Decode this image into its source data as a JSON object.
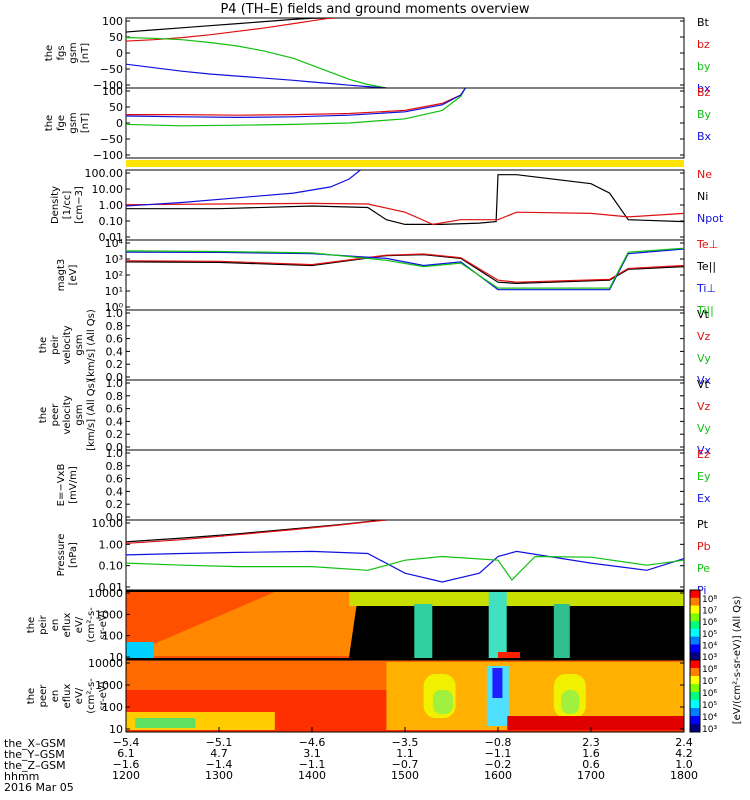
{
  "title": "P4 (TH–E) fields and ground moments overview",
  "colors": {
    "black": "#000000",
    "red": "#e01010",
    "green": "#10c010",
    "blue": "#1010e0",
    "yellow": "#ffe400"
  },
  "chart_data": [
    {
      "type": "line",
      "panel": "fgs-gsm",
      "ylabel_lines": [
        "the",
        "fgs",
        "gsm",
        "[nT]"
      ],
      "ytick_labels": [
        "100",
        "50",
        "0",
        "−50",
        "−100"
      ],
      "ylim": [
        -100,
        100
      ],
      "legend": [
        {
          "name": "Bt",
          "color": "#000000"
        },
        {
          "name": "bz",
          "color": "#e01010"
        },
        {
          "name": "by",
          "color": "#10c010"
        },
        {
          "name": "bx",
          "color": "#1010e0"
        }
      ],
      "series": [
        {
          "name": "Bt",
          "color": "#000000",
          "x": [
            1200,
            1230,
            1260,
            1290,
            1320,
            1350,
            1380,
            1400,
            1415,
            1425
          ],
          "y": [
            60,
            66,
            72,
            78,
            84,
            90,
            96,
            99,
            100,
            100
          ]
        },
        {
          "name": "bz",
          "color": "#e01010",
          "x": [
            1200,
            1230,
            1260,
            1290,
            1320,
            1350,
            1380,
            1400,
            1415,
            1425
          ],
          "y": [
            34,
            38,
            44,
            52,
            62,
            72,
            84,
            92,
            98,
            100
          ]
        },
        {
          "name": "by",
          "color": "#10c010",
          "x": [
            1200,
            1230,
            1260,
            1290,
            1320,
            1350,
            1380,
            1400,
            1420,
            1440,
            1460,
            1480
          ],
          "y": [
            44,
            42,
            38,
            30,
            20,
            5,
            -15,
            -35,
            -55,
            -75,
            -90,
            -100
          ]
        },
        {
          "name": "bx",
          "color": "#1010e0",
          "x": [
            1200,
            1230,
            1260,
            1290,
            1320,
            1350,
            1380,
            1400,
            1420,
            1440,
            1460,
            1480
          ],
          "y": [
            -32,
            -42,
            -52,
            -60,
            -66,
            -72,
            -78,
            -83,
            -87,
            -92,
            -96,
            -100
          ]
        }
      ]
    },
    {
      "type": "line",
      "panel": "fge-gsm",
      "ylabel_lines": [
        "the",
        "fge",
        "gsm",
        "[nT]"
      ],
      "ytick_labels": [
        "100",
        "50",
        "0",
        "−50",
        "−100"
      ],
      "ylim": [
        -125,
        125
      ],
      "legend": [
        {
          "name": "Bz",
          "color": "#e01010"
        },
        {
          "name": "By",
          "color": "#10c010"
        },
        {
          "name": "Bx",
          "color": "#1010e0"
        }
      ],
      "series": [
        {
          "name": "Bz",
          "color": "#e01010",
          "x": [
            1200,
            1260,
            1320,
            1380,
            1440,
            1500,
            1540,
            1560,
            1565
          ],
          "y": [
            30,
            30,
            28,
            30,
            34,
            45,
            70,
            100,
            125
          ]
        },
        {
          "name": "By",
          "color": "#10c010",
          "x": [
            1200,
            1260,
            1320,
            1380,
            1440,
            1500,
            1540,
            1560,
            1565
          ],
          "y": [
            -5,
            -10,
            -8,
            -5,
            0,
            15,
            45,
            95,
            125
          ]
        },
        {
          "name": "Bx",
          "color": "#1010e0",
          "x": [
            1200,
            1260,
            1320,
            1380,
            1440,
            1500,
            1540,
            1560,
            1565
          ],
          "y": [
            25,
            22,
            20,
            22,
            28,
            40,
            65,
            100,
            125
          ]
        }
      ]
    },
    {
      "type": "line",
      "panel": "density",
      "ylabel_lines": [
        "Density",
        "[1/cc]",
        "[cm−3]"
      ],
      "ytick_labels": [
        "100.00",
        "10.00",
        "1.00",
        "0.10",
        "0.01"
      ],
      "ylim": [
        0.01,
        300
      ],
      "legend": [
        {
          "name": "Ne",
          "color": "#e01010"
        },
        {
          "name": "Ni",
          "color": "#000000"
        },
        {
          "name": "Npot",
          "color": "#1010e0"
        }
      ],
      "series": [
        {
          "name": "Ni",
          "color": "#000000",
          "x": [
            1200,
            1300,
            1400,
            1460,
            1480,
            1500,
            1540,
            1580,
            1598,
            1600,
            1620,
            1700,
            1720,
            1740,
            1800
          ],
          "y": [
            1.0,
            1.0,
            1.5,
            1.2,
            0.2,
            0.1,
            0.1,
            0.12,
            0.15,
            150,
            150,
            40,
            10,
            0.2,
            0.15
          ]
        },
        {
          "name": "Ne",
          "color": "#e01010",
          "x": [
            1200,
            1300,
            1400,
            1460,
            1500,
            1530,
            1560,
            1600,
            1620,
            1700,
            1740,
            1800
          ],
          "y": [
            1.8,
            2,
            2.2,
            2,
            0.6,
            0.1,
            0.2,
            0.2,
            0.6,
            0.5,
            0.3,
            0.5
          ]
        },
        {
          "name": "Npot",
          "color": "#1010e0",
          "x": [
            1200,
            1260,
            1320,
            1380,
            1420,
            1440,
            1452
          ],
          "y": [
            1.5,
            2.5,
            5,
            10,
            25,
            80,
            300
          ]
        }
      ]
    },
    {
      "type": "line",
      "panel": "temperature",
      "ylabel_lines": [
        "magt3",
        "[eV]"
      ],
      "ytick_labels": [
        "10⁴",
        "10³",
        "10²",
        "10¹",
        "10⁰"
      ],
      "ylim": [
        1,
        30000
      ],
      "legend": [
        {
          "name": "Te⊥",
          "color": "#e01010"
        },
        {
          "name": "Te||",
          "color": "#000000"
        },
        {
          "name": "Ti⊥",
          "color": "#1010e0"
        },
        {
          "name": "Ti||",
          "color": "#10c010"
        }
      ],
      "series": [
        {
          "name": "Te||",
          "color": "#000000",
          "x": [
            1200,
            1300,
            1400,
            1480,
            1520,
            1560,
            1600,
            1620,
            1720,
            1740,
            1800
          ],
          "y": [
            1200,
            1100,
            700,
            3000,
            3500,
            2000,
            60,
            50,
            80,
            400,
            600
          ]
        },
        {
          "name": "Te⊥",
          "color": "#e01010",
          "x": [
            1200,
            1300,
            1400,
            1480,
            1520,
            1560,
            1600,
            1620,
            1720,
            1740,
            1800
          ],
          "y": [
            1400,
            1300,
            800,
            3200,
            3800,
            2200,
            80,
            60,
            90,
            450,
            700
          ]
        },
        {
          "name": "Ti⊥",
          "color": "#1010e0",
          "x": [
            1200,
            1300,
            1400,
            1480,
            1520,
            1560,
            1600,
            1620,
            1720,
            1740,
            1800
          ],
          "y": [
            5000,
            4800,
            4000,
            2000,
            700,
            1200,
            20,
            20,
            20,
            4000,
            8000
          ]
        },
        {
          "name": "Ti||",
          "color": "#10c010",
          "x": [
            1200,
            1300,
            1400,
            1480,
            1520,
            1560,
            1600,
            1620,
            1720,
            1740,
            1800
          ],
          "y": [
            6000,
            5500,
            4500,
            1500,
            600,
            1000,
            25,
            25,
            25,
            5000,
            9000
          ]
        }
      ]
    },
    {
      "type": "line",
      "panel": "peir-velocity",
      "ylabel_lines": [
        "the",
        "peir",
        "velocity",
        "gsm",
        "[km/s] (All Qs)"
      ],
      "ytick_labels": [
        "1.0",
        "0.8",
        "0.6",
        "0.4",
        "0.2",
        "0.0"
      ],
      "ylim": [
        0,
        1
      ],
      "legend": [
        {
          "name": "Vt",
          "color": "#000000"
        },
        {
          "name": "Vz",
          "color": "#e01010"
        },
        {
          "name": "Vy",
          "color": "#10c010"
        },
        {
          "name": "Vx",
          "color": "#1010e0"
        }
      ],
      "series": []
    },
    {
      "type": "line",
      "panel": "peer-velocity",
      "ylabel_lines": [
        "the",
        "peer",
        "velocity",
        "gsm",
        "[km/s] (All Qs)"
      ],
      "ytick_labels": [
        "1.0",
        "0.8",
        "0.6",
        "0.4",
        "0.2",
        "0.0"
      ],
      "ylim": [
        0,
        1
      ],
      "legend": [
        {
          "name": "Vt",
          "color": "#000000"
        },
        {
          "name": "Vz",
          "color": "#e01010"
        },
        {
          "name": "Vy",
          "color": "#10c010"
        },
        {
          "name": "Vx",
          "color": "#1010e0"
        }
      ],
      "series": []
    },
    {
      "type": "line",
      "panel": "E-field",
      "ylabel_lines": [
        "E=−VxB",
        "[mV/m]"
      ],
      "ytick_labels": [
        "1.0",
        "0.8",
        "0.6",
        "0.4",
        "0.2",
        "0.0"
      ],
      "ylim": [
        0,
        1
      ],
      "legend": [
        {
          "name": "Ez",
          "color": "#e01010"
        },
        {
          "name": "Ey",
          "color": "#10c010"
        },
        {
          "name": "Ex",
          "color": "#1010e0"
        }
      ],
      "series": []
    },
    {
      "type": "line",
      "panel": "pressure",
      "ylabel_lines": [
        "Pressure",
        "[nPa]"
      ],
      "ytick_labels": [
        "10.00",
        "1.00",
        "0.10",
        "0.01"
      ],
      "ylim": [
        0.002,
        30
      ],
      "legend": [
        {
          "name": "Pt",
          "color": "#000000"
        },
        {
          "name": "Pb",
          "color": "#e01010"
        },
        {
          "name": "Pe",
          "color": "#10c010"
        },
        {
          "name": "Pi",
          "color": "#1010e0"
        }
      ],
      "series": [
        {
          "name": "Pt",
          "color": "#000000",
          "x": [
            1200,
            1260,
            1320,
            1380,
            1430,
            1460,
            1480
          ],
          "y": [
            1.5,
            2.5,
            4.5,
            9,
            16,
            24,
            30
          ]
        },
        {
          "name": "Pb",
          "color": "#e01010",
          "x": [
            1200,
            1260,
            1320,
            1380,
            1430,
            1460,
            1480
          ],
          "y": [
            1.2,
            2,
            4,
            8,
            15,
            23,
            30
          ]
        },
        {
          "name": "Pi",
          "color": "#1010e0",
          "x": [
            1200,
            1260,
            1320,
            1400,
            1460,
            1500,
            1540,
            1580,
            1600,
            1620,
            1700,
            1760,
            1800
          ],
          "y": [
            0.25,
            0.3,
            0.35,
            0.4,
            0.3,
            0.02,
            0.006,
            0.02,
            0.2,
            0.4,
            0.08,
            0.03,
            0.15
          ]
        },
        {
          "name": "Pe",
          "color": "#10c010",
          "x": [
            1200,
            1260,
            1320,
            1400,
            1460,
            1500,
            1540,
            1600,
            1615,
            1640,
            1700,
            1760,
            1800
          ],
          "y": [
            0.08,
            0.06,
            0.05,
            0.05,
            0.03,
            0.12,
            0.2,
            0.12,
            0.008,
            0.2,
            0.18,
            0.06,
            0.12
          ]
        }
      ]
    },
    {
      "type": "heatmap",
      "panel": "peir-eflux",
      "ylabel_lines": [
        "the",
        "peir",
        "en",
        "eflux",
        "eV/",
        "(cm²-s-",
        "sr-eV)"
      ],
      "ytick_labels": [
        "10000",
        "1000",
        "100",
        "10"
      ],
      "ylim": [
        7,
        30000
      ]
    },
    {
      "type": "heatmap",
      "panel": "peer-eflux",
      "ylabel_lines": [
        "the",
        "peer",
        "en",
        "eflux",
        "eV/",
        "(cm²-s-",
        "sr-eV)"
      ],
      "ytick_labels": [
        "10000",
        "1000",
        "100",
        "10"
      ],
      "ylim": [
        7,
        30000
      ]
    }
  ],
  "colorbar": {
    "label": "[eV/(cm²-s-sr-eV)] (All Qs)",
    "top_ticks": [
      "10⁸",
      "10⁷",
      "10⁶",
      "10⁵",
      "10⁴",
      "10³"
    ],
    "bottom_ticks": [
      "10⁸",
      "10⁷",
      "10⁶",
      "10⁵",
      "10⁴",
      "10³"
    ]
  },
  "xaxis": {
    "range": [
      1200,
      1800
    ],
    "rows": [
      {
        "label": "the_X–GSM",
        "values": [
          "−5.4",
          "−5.1",
          "−4.6",
          "−3.5",
          "−0.8",
          "2.3",
          "2.4"
        ]
      },
      {
        "label": "the_Y–GSM",
        "values": [
          "6.1",
          "4.7",
          "3.1",
          "1.1",
          "−1.1",
          "1.6",
          "4.2"
        ]
      },
      {
        "label": "the_Z–GSM",
        "values": [
          "−1.6",
          "−1.4",
          "−1.1",
          "−0.7",
          "−0.2",
          "0.6",
          "1.0"
        ]
      },
      {
        "label": "hhmm",
        "values": [
          "1200",
          "1300",
          "1400",
          "1500",
          "1600",
          "1700",
          "1800"
        ]
      }
    ],
    "date": "2016 Mar 05"
  }
}
